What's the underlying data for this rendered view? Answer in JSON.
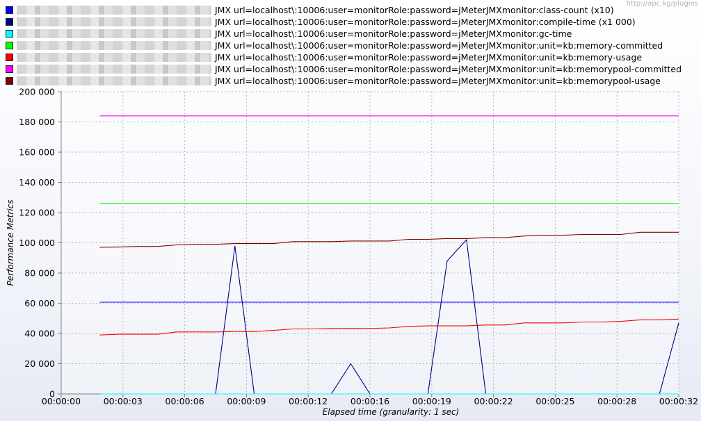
{
  "watermark": "http://apc.kg/plugins",
  "chart_data": {
    "type": "line",
    "xlabel": "Elapsed time (granularity: 1 sec)",
    "ylabel": "Performance Metrics",
    "xlim": [
      0,
      32
    ],
    "ylim": [
      0,
      200000
    ],
    "grid": true,
    "legend_position": "top-left",
    "x_ticks": [
      "00:00:00",
      "00:00:03",
      "00:00:06",
      "00:00:09",
      "00:00:12",
      "00:00:16",
      "00:00:19",
      "00:00:22",
      "00:00:25",
      "00:00:28",
      "00:00:32"
    ],
    "y_ticks": [
      "0",
      "20 000",
      "40 000",
      "60 000",
      "80 000",
      "100 000",
      "120 000",
      "140 000",
      "160 000",
      "180 000",
      "200 000"
    ],
    "x_tick_seconds": [
      0,
      3.2,
      6.4,
      9.6,
      12.8,
      16,
      19.2,
      22.4,
      25.6,
      28.8,
      32
    ],
    "y_tick_values": [
      0,
      20000,
      40000,
      60000,
      80000,
      100000,
      120000,
      140000,
      160000,
      180000,
      200000
    ],
    "series": [
      {
        "name": "JMX url=localhost\\:10006:user=monitorRole:password=jMeterJMXmonitor:class-count (x10)",
        "color": "#0000ff",
        "x": [
          2,
          32
        ],
        "y": [
          60700,
          60700
        ]
      },
      {
        "name": "JMX url=localhost\\:10006:user=monitorRole:password=jMeterJMXmonitor:compile-time (x1 000)",
        "color": "#000080",
        "x": [
          2,
          3,
          4,
          5,
          6,
          7,
          8,
          9,
          10,
          11,
          12,
          13,
          14,
          15,
          16,
          17,
          18,
          19,
          20,
          21,
          22,
          23,
          24,
          25,
          26,
          27,
          28,
          29,
          30,
          31,
          32
        ],
        "y": [
          0,
          0,
          0,
          0,
          0,
          0,
          0,
          98000,
          0,
          0,
          0,
          0,
          0,
          20000,
          0,
          0,
          0,
          0,
          88000,
          102000,
          0,
          0,
          0,
          0,
          0,
          0,
          0,
          0,
          0,
          0,
          47000
        ]
      },
      {
        "name": "JMX url=localhost\\:10006:user=monitorRole:password=jMeterJMXmonitor:gc-time",
        "color": "#00ffff",
        "x": [
          2,
          32
        ],
        "y": [
          0,
          0
        ]
      },
      {
        "name": "JMX url=localhost\\:10006:user=monitorRole:password=jMeterJMXmonitor:unit=kb:memory-committed",
        "color": "#00ff00",
        "x": [
          2,
          32
        ],
        "y": [
          126000,
          126000
        ]
      },
      {
        "name": "JMX url=localhost\\:10006:user=monitorRole:password=jMeterJMXmonitor:unit=kb:memory-usage",
        "color": "#ff0000",
        "x": [
          2,
          3,
          4,
          5,
          6,
          7,
          8,
          9,
          10,
          11,
          12,
          13,
          14,
          15,
          16,
          17,
          18,
          19,
          20,
          21,
          22,
          23,
          24,
          25,
          26,
          27,
          28,
          29,
          30,
          31,
          32
        ],
        "y": [
          39000,
          39500,
          39500,
          39500,
          41000,
          41000,
          41000,
          41300,
          41300,
          42000,
          43000,
          43000,
          43300,
          43300,
          43300,
          43700,
          44700,
          45000,
          45000,
          45000,
          45600,
          45600,
          47000,
          47000,
          47000,
          47600,
          47600,
          48000,
          49000,
          49000,
          49500
        ]
      },
      {
        "name": "JMX url=localhost\\:10006:user=monitorRole:password=jMeterJMXmonitor:unit=kb:memorypool-committed",
        "color": "#ff00ff",
        "x": [
          2,
          32
        ],
        "y": [
          184000,
          184000
        ]
      },
      {
        "name": "JMX url=localhost\\:10006:user=monitorRole:password=jMeterJMXmonitor:unit=kb:memorypool-usage",
        "color": "#800000",
        "x": [
          2,
          3,
          4,
          5,
          6,
          7,
          8,
          9,
          10,
          11,
          12,
          13,
          14,
          15,
          16,
          17,
          18,
          19,
          20,
          21,
          22,
          23,
          24,
          25,
          26,
          27,
          28,
          29,
          30,
          31,
          32
        ],
        "y": [
          97000,
          97200,
          97600,
          97600,
          98600,
          99000,
          99000,
          99500,
          99500,
          99500,
          100800,
          100800,
          100800,
          101200,
          101200,
          101200,
          102300,
          102300,
          102800,
          102800,
          103400,
          103400,
          104500,
          105000,
          105000,
          105500,
          105500,
          105500,
          107000,
          107000,
          107000
        ]
      }
    ]
  }
}
